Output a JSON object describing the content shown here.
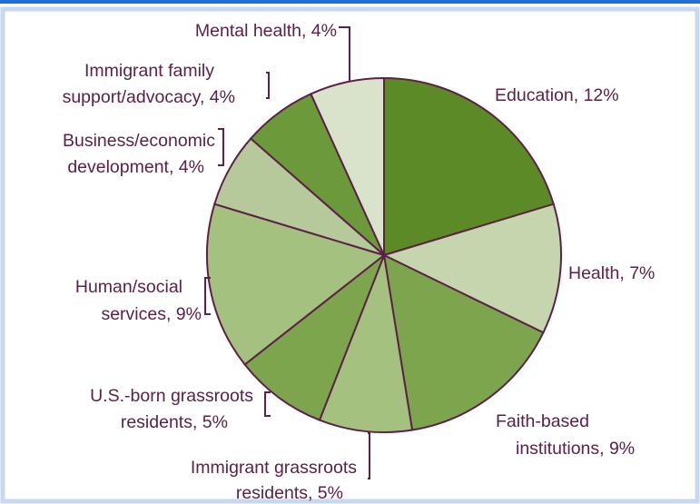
{
  "colors": {
    "frame_border": "#c6d9f1",
    "top_band": "#1f6fd6",
    "slice_outline": "#5c2147",
    "label_text": "#5c2147"
  },
  "chart_data": {
    "type": "pie",
    "title": "",
    "unit": "%",
    "start": "12 o'clock, clockwise",
    "slices": [
      {
        "label": "Education, 12%",
        "category": "Education",
        "value": 12,
        "color": "#5c8a26"
      },
      {
        "label": "Health, 7%",
        "category": "Health",
        "value": 7,
        "color": "#c5d6ae"
      },
      {
        "label": "Faith-based institutions, 9%",
        "category": "Faith-based institutions",
        "value": 9,
        "color": "#7da54e"
      },
      {
        "label": "Immigrant grassroots residents, 5%",
        "category": "Immigrant grassroots residents",
        "value": 5,
        "color": "#a4c17f"
      },
      {
        "label": "U.S.-born grassroots residents, 5%",
        "category": "U.S.-born grassroots residents",
        "value": 5,
        "color": "#7da54e"
      },
      {
        "label": "Human/social services, 9%",
        "category": "Human/social services",
        "value": 9,
        "color": "#a4c17f"
      },
      {
        "label": "Business/economic development, 4%",
        "category": "Business/economic development",
        "value": 4,
        "color": "#b5c99a"
      },
      {
        "label": "Immigrant family support/advocacy, 4%",
        "category": "Immigrant family support/advocacy",
        "value": 4,
        "color": "#6c9a3a"
      },
      {
        "label": "Mental health, 4%",
        "category": "Mental health",
        "value": 4,
        "color": "#d9e3cb"
      }
    ]
  }
}
